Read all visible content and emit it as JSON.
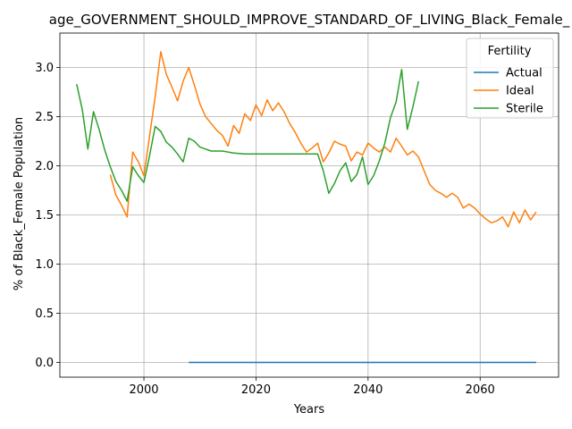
{
  "chart_data": {
    "type": "line",
    "title": "age_GOVERNMENT_SHOULD_IMPROVE_STANDARD_OF_LIVING_Black_Female_",
    "xlabel": "Years",
    "ylabel": "% of Black_Female Population",
    "xlim": [
      1985,
      2074
    ],
    "ylim": [
      -0.15,
      3.35
    ],
    "xticks": [
      2000,
      2020,
      2040,
      2060
    ],
    "yticks": [
      0.0,
      0.5,
      1.0,
      1.5,
      2.0,
      2.5,
      3.0
    ],
    "xtick_labels": [
      "2000",
      "2020",
      "2040",
      "2060"
    ],
    "ytick_labels": [
      "0.0",
      "0.5",
      "1.0",
      "1.5",
      "2.0",
      "2.5",
      "3.0"
    ],
    "grid": true,
    "legend": {
      "title": "Fertility",
      "placement": "top-right"
    },
    "series": [
      {
        "name": "Actual",
        "color": "#1f77b4",
        "points": [
          [
            2008,
            0.0
          ],
          [
            2070,
            0.0
          ]
        ]
      },
      {
        "name": "Ideal",
        "color": "#ff7f0e",
        "points": [
          [
            1994,
            1.91
          ],
          [
            1995,
            1.7
          ],
          [
            1996,
            1.6
          ],
          [
            1997,
            1.48
          ],
          [
            1998,
            2.14
          ],
          [
            1999,
            2.04
          ],
          [
            2000,
            1.9
          ],
          [
            2001,
            2.3
          ],
          [
            2002,
            2.7
          ],
          [
            2003,
            3.16
          ],
          [
            2004,
            2.93
          ],
          [
            2005,
            2.8
          ],
          [
            2006,
            2.66
          ],
          [
            2007,
            2.86
          ],
          [
            2008,
            3.0
          ],
          [
            2009,
            2.82
          ],
          [
            2010,
            2.63
          ],
          [
            2011,
            2.5
          ],
          [
            2012,
            2.43
          ],
          [
            2013,
            2.36
          ],
          [
            2014,
            2.31
          ],
          [
            2015,
            2.2
          ],
          [
            2016,
            2.41
          ],
          [
            2017,
            2.33
          ],
          [
            2018,
            2.53
          ],
          [
            2019,
            2.46
          ],
          [
            2020,
            2.62
          ],
          [
            2021,
            2.51
          ],
          [
            2022,
            2.67
          ],
          [
            2023,
            2.56
          ],
          [
            2024,
            2.64
          ],
          [
            2025,
            2.55
          ],
          [
            2026,
            2.43
          ],
          [
            2027,
            2.34
          ],
          [
            2028,
            2.23
          ],
          [
            2029,
            2.14
          ],
          [
            2030,
            2.18
          ],
          [
            2031,
            2.23
          ],
          [
            2032,
            2.04
          ],
          [
            2033,
            2.13
          ],
          [
            2034,
            2.25
          ],
          [
            2035,
            2.22
          ],
          [
            2036,
            2.2
          ],
          [
            2037,
            2.05
          ],
          [
            2038,
            2.14
          ],
          [
            2039,
            2.11
          ],
          [
            2040,
            2.23
          ],
          [
            2041,
            2.18
          ],
          [
            2042,
            2.14
          ],
          [
            2043,
            2.19
          ],
          [
            2044,
            2.14
          ],
          [
            2045,
            2.28
          ],
          [
            2046,
            2.2
          ],
          [
            2047,
            2.11
          ],
          [
            2048,
            2.15
          ],
          [
            2049,
            2.09
          ],
          [
            2050,
            1.95
          ],
          [
            2051,
            1.81
          ],
          [
            2052,
            1.75
          ],
          [
            2053,
            1.72
          ],
          [
            2054,
            1.68
          ],
          [
            2055,
            1.72
          ],
          [
            2056,
            1.68
          ],
          [
            2057,
            1.57
          ],
          [
            2058,
            1.61
          ],
          [
            2059,
            1.57
          ],
          [
            2060,
            1.51
          ],
          [
            2061,
            1.46
          ],
          [
            2062,
            1.42
          ],
          [
            2063,
            1.44
          ],
          [
            2064,
            1.48
          ],
          [
            2065,
            1.38
          ],
          [
            2066,
            1.53
          ],
          [
            2067,
            1.42
          ],
          [
            2068,
            1.55
          ],
          [
            2069,
            1.45
          ],
          [
            2070,
            1.53
          ]
        ]
      },
      {
        "name": "Sterile",
        "color": "#2ca02c",
        "points": [
          [
            1988,
            2.83
          ],
          [
            1989,
            2.57
          ],
          [
            1990,
            2.17
          ],
          [
            1991,
            2.55
          ],
          [
            1992,
            2.37
          ],
          [
            1993,
            2.16
          ],
          [
            1994,
            1.99
          ],
          [
            1995,
            1.84
          ],
          [
            1996,
            1.75
          ],
          [
            1997,
            1.64
          ],
          [
            1998,
            1.99
          ],
          [
            1999,
            1.9
          ],
          [
            2000,
            1.83
          ],
          [
            2001,
            2.1
          ],
          [
            2002,
            2.4
          ],
          [
            2003,
            2.35
          ],
          [
            2004,
            2.24
          ],
          [
            2005,
            2.19
          ],
          [
            2006,
            2.12
          ],
          [
            2007,
            2.04
          ],
          [
            2008,
            2.28
          ],
          [
            2009,
            2.25
          ],
          [
            2010,
            2.19
          ],
          [
            2011,
            2.17
          ],
          [
            2012,
            2.15
          ],
          [
            2014,
            2.15
          ],
          [
            2016,
            2.13
          ],
          [
            2018,
            2.12
          ],
          [
            2020,
            2.12
          ],
          [
            2022,
            2.12
          ],
          [
            2024,
            2.12
          ],
          [
            2026,
            2.12
          ],
          [
            2028,
            2.12
          ],
          [
            2030,
            2.12
          ],
          [
            2031,
            2.12
          ],
          [
            2032,
            1.95
          ],
          [
            2033,
            1.72
          ],
          [
            2034,
            1.82
          ],
          [
            2035,
            1.95
          ],
          [
            2036,
            2.03
          ],
          [
            2037,
            1.84
          ],
          [
            2038,
            1.91
          ],
          [
            2039,
            2.09
          ],
          [
            2040,
            1.81
          ],
          [
            2041,
            1.9
          ],
          [
            2042,
            2.05
          ],
          [
            2043,
            2.23
          ],
          [
            2044,
            2.49
          ],
          [
            2045,
            2.65
          ],
          [
            2046,
            2.98
          ],
          [
            2047,
            2.37
          ],
          [
            2048,
            2.6
          ],
          [
            2049,
            2.86
          ]
        ]
      }
    ]
  }
}
